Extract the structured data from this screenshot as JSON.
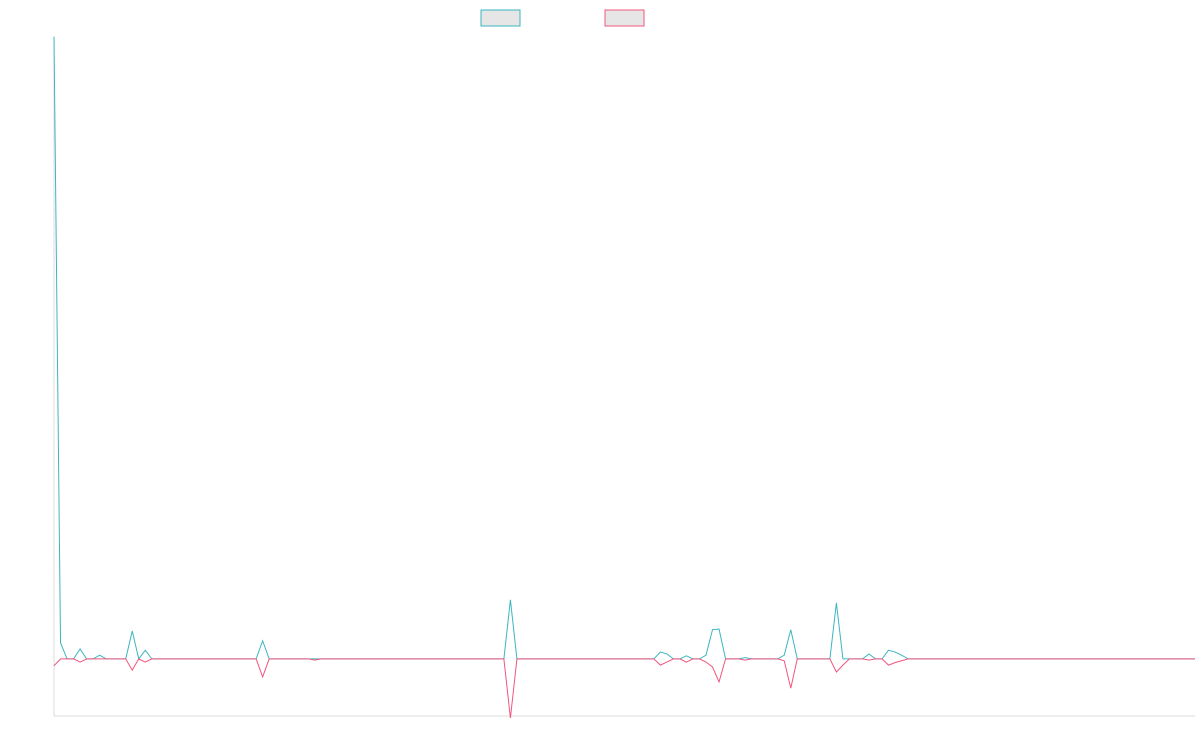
{
  "chart_data": {
    "type": "line",
    "ylim": [
      -9.5,
      100
    ],
    "series": [
      {
        "color": "#3bb6bf",
        "values": [
          100,
          2.6,
          0,
          0,
          1.6,
          0,
          0,
          0.6,
          0,
          0,
          0,
          0,
          4.5,
          0,
          1.4,
          0,
          0,
          0,
          0,
          0,
          0,
          0,
          0,
          0,
          0,
          0,
          0,
          0,
          0,
          0,
          0,
          0,
          2.9,
          0,
          0,
          0,
          0,
          0,
          0,
          0,
          0,
          0,
          0,
          0,
          0,
          0,
          0,
          0,
          0,
          0,
          0,
          0,
          0,
          0,
          0,
          0,
          0,
          0,
          0,
          0,
          0,
          0,
          0,
          0,
          0,
          0,
          0,
          0,
          0,
          0,
          9.5,
          0,
          0,
          0,
          0,
          0,
          0,
          0,
          0,
          0,
          0,
          0,
          0,
          0,
          0,
          0,
          0,
          0,
          0,
          0,
          0,
          0,
          0,
          1.1,
          0.8,
          0,
          0,
          0.5,
          0,
          0,
          0.6,
          4.7,
          4.8,
          0,
          0,
          0,
          0.2,
          0,
          0,
          0,
          0,
          0,
          0.6,
          4.7,
          0,
          0,
          0,
          0,
          0,
          0,
          9.0,
          0,
          0,
          0,
          0,
          0.8,
          0,
          0,
          1.4,
          1.1,
          0.6,
          0,
          0,
          0,
          0,
          0,
          0,
          0,
          0,
          0,
          0,
          0,
          0,
          0,
          0,
          0,
          0,
          0,
          0,
          0,
          0,
          0,
          0,
          0,
          0,
          0,
          0,
          0,
          0,
          0,
          0,
          0,
          0,
          0,
          0,
          0,
          0,
          0,
          0,
          0,
          0,
          0,
          0,
          0,
          0,
          0
        ]
      },
      {
        "color": "#f2557e",
        "values": [
          -1.1,
          0,
          0,
          0,
          -0.5,
          0,
          0,
          0,
          0,
          0,
          0,
          0,
          -1.8,
          0,
          -0.5,
          0,
          0,
          0,
          0,
          0,
          0,
          0,
          0,
          0,
          0,
          0,
          0,
          0,
          0,
          0,
          0,
          0,
          -2.9,
          0,
          0,
          0,
          0,
          0,
          0,
          0,
          -0.2,
          0,
          0,
          0,
          0,
          0,
          0,
          0,
          0,
          0,
          0,
          0,
          0,
          0,
          0,
          0,
          0,
          0,
          0,
          0,
          0,
          0,
          0,
          0,
          0,
          0,
          0,
          0,
          0,
          0,
          -9.5,
          0,
          0,
          0,
          0,
          0,
          0,
          0,
          0,
          0,
          0,
          0,
          0,
          0,
          0,
          0,
          0,
          0,
          0,
          0,
          0,
          0,
          0,
          -1.0,
          -0.5,
          0,
          0,
          -0.5,
          0,
          0,
          -0.5,
          -1.3,
          -3.7,
          0,
          0,
          0,
          -0.2,
          0,
          0,
          0,
          0,
          0,
          -0.3,
          -4.7,
          0,
          0,
          0,
          0,
          0,
          0,
          -2.1,
          -1.0,
          0,
          0,
          0,
          -0.2,
          0,
          0,
          -1.0,
          -0.6,
          -0.3,
          0,
          0,
          0,
          0,
          0,
          0,
          0,
          0,
          0,
          0,
          0,
          0,
          0,
          0,
          0,
          0,
          0,
          0,
          0,
          0,
          0,
          0,
          0,
          0,
          0,
          0,
          0,
          0,
          0,
          0,
          0,
          0,
          0,
          0,
          0,
          0,
          0,
          0,
          0,
          0,
          0,
          0,
          0,
          0,
          0
        ]
      }
    ]
  }
}
